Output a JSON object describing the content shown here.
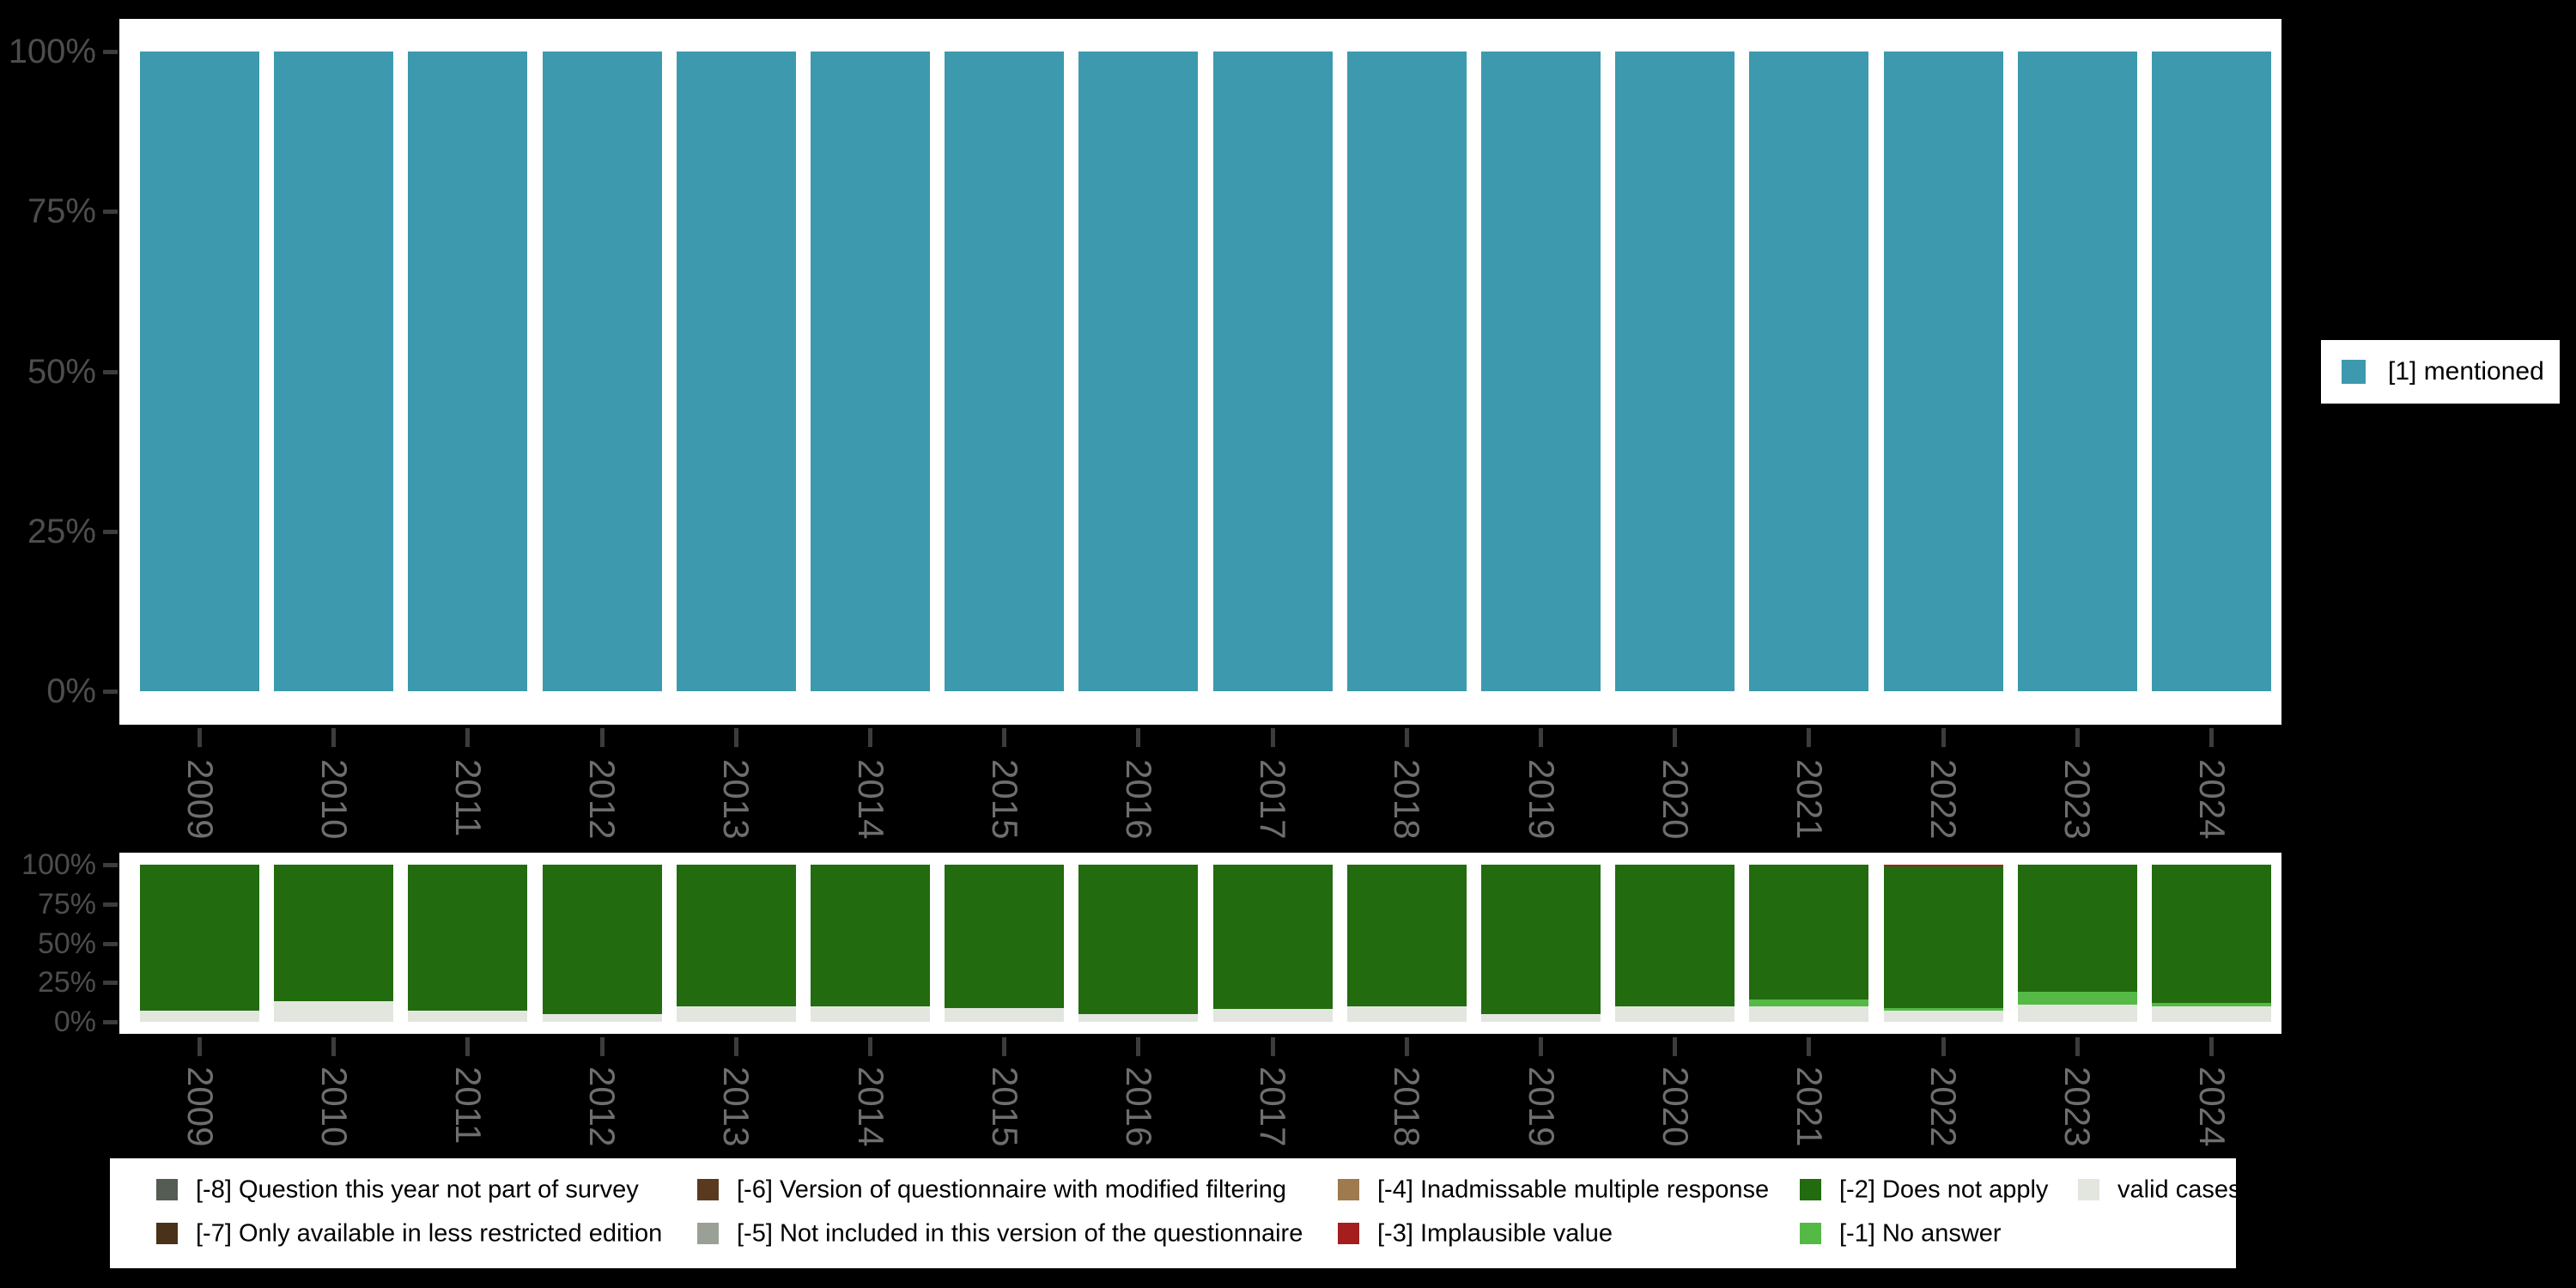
{
  "colors": {
    "background": "#000000",
    "panel_background": "#ffffff",
    "axis_label": "#4d4d4d",
    "year_label": "#6e6e6e",
    "tick": "#3c3c3c",
    "legend_text": "#000000",
    "mentioned_teal": "#3d99ae",
    "does_not_apply_green": "#226b0e",
    "no_answer_green": "#55b946",
    "valid_cases_gray": "#e3e6df",
    "implausible_red": "#a41e1e",
    "not_part_of_survey_gray": "#555c53",
    "less_restricted_brown": "#4a3119",
    "modified_filtering_brown": "#5a3a1e",
    "not_included_gray": "#9aa096",
    "inadmissable_tan": "#9e7a4e"
  },
  "categories": [
    "2009",
    "2010",
    "2011",
    "2012",
    "2013",
    "2014",
    "2015",
    "2016",
    "2017",
    "2018",
    "2019",
    "2020",
    "2021",
    "2022",
    "2023",
    "2024"
  ],
  "chart_data": [
    {
      "type": "bar",
      "stacked": true,
      "title": "",
      "xlabel": "",
      "ylabel": "",
      "ylim": [
        0,
        100
      ],
      "grid": false,
      "legend_position": "right",
      "y_ticks": [
        "100%",
        "75%",
        "50%",
        "25%",
        "0%"
      ],
      "categories": [
        "2009",
        "2010",
        "2011",
        "2012",
        "2013",
        "2014",
        "2015",
        "2016",
        "2017",
        "2018",
        "2019",
        "2020",
        "2021",
        "2022",
        "2023",
        "2024"
      ],
      "series": [
        {
          "key": "mentioned",
          "name": "[1] mentioned",
          "color": "#3d99ae",
          "values": [
            100,
            100,
            100,
            100,
            100,
            100,
            100,
            100,
            100,
            100,
            100,
            100,
            100,
            100,
            100,
            100
          ]
        }
      ],
      "legend": [
        {
          "label": "[1] mentioned",
          "color": "#3d99ae"
        }
      ]
    },
    {
      "type": "bar",
      "stacked": true,
      "title": "",
      "xlabel": "",
      "ylabel": "",
      "ylim": [
        0,
        100
      ],
      "grid": false,
      "legend_position": "bottom",
      "y_ticks": [
        "100%",
        "75%",
        "50%",
        "25%",
        "0%"
      ],
      "categories": [
        "2009",
        "2010",
        "2011",
        "2012",
        "2013",
        "2014",
        "2015",
        "2016",
        "2017",
        "2018",
        "2019",
        "2020",
        "2021",
        "2022",
        "2023",
        "2024"
      ],
      "series": [
        {
          "key": "valid-cases",
          "name": "valid cases",
          "color": "#e3e6df",
          "values": [
            7,
            13,
            7,
            5,
            10,
            10,
            9,
            5,
            8,
            10,
            5,
            10,
            10,
            7,
            11,
            10
          ]
        },
        {
          "key": "no-answer",
          "name": "[-1] No answer",
          "color": "#55b946",
          "values": [
            0,
            0,
            0,
            0,
            0,
            0,
            0,
            0,
            0,
            0,
            0,
            0,
            4,
            2,
            8,
            2
          ]
        },
        {
          "key": "does-not-apply",
          "name": "[-2] Does not apply",
          "color": "#226b0e",
          "values": [
            93,
            87,
            93,
            95,
            90,
            90,
            91,
            95,
            92,
            90,
            95,
            90,
            86,
            90,
            81,
            88
          ]
        },
        {
          "key": "implausible-value",
          "name": "[-3] Implausible value",
          "color": "#a41e1e",
          "values": [
            0,
            0,
            0,
            0,
            0,
            0,
            0,
            0,
            0,
            0,
            0,
            0,
            0,
            1,
            0,
            0
          ]
        }
      ]
    }
  ],
  "missing_legend": {
    "columns": [
      {
        "items": [
          {
            "key": "-8",
            "label": "[-8] Question this year not part of survey",
            "color": "#555c53"
          },
          {
            "key": "-7",
            "label": "[-7] Only available in less restricted edition",
            "color": "#4a3119"
          }
        ]
      },
      {
        "items": [
          {
            "key": "-6",
            "label": "[-6] Version of questionnaire with modified filtering",
            "color": "#5a3a1e"
          },
          {
            "key": "-5",
            "label": "[-5] Not included in this version of the questionnaire",
            "color": "#9aa096"
          }
        ]
      },
      {
        "items": [
          {
            "key": "-4",
            "label": "[-4] Inadmissable multiple response",
            "color": "#9e7a4e"
          },
          {
            "key": "-3",
            "label": "[-3] Implausible value",
            "color": "#a41e1e"
          }
        ]
      },
      {
        "items": [
          {
            "key": "-2",
            "label": "[-2] Does not apply",
            "color": "#226b0e"
          },
          {
            "key": "-1",
            "label": "[-1] No answer",
            "color": "#55b946"
          }
        ]
      },
      {
        "items": [
          {
            "key": "valid",
            "label": "valid cases",
            "color": "#e3e6df"
          }
        ]
      }
    ]
  }
}
